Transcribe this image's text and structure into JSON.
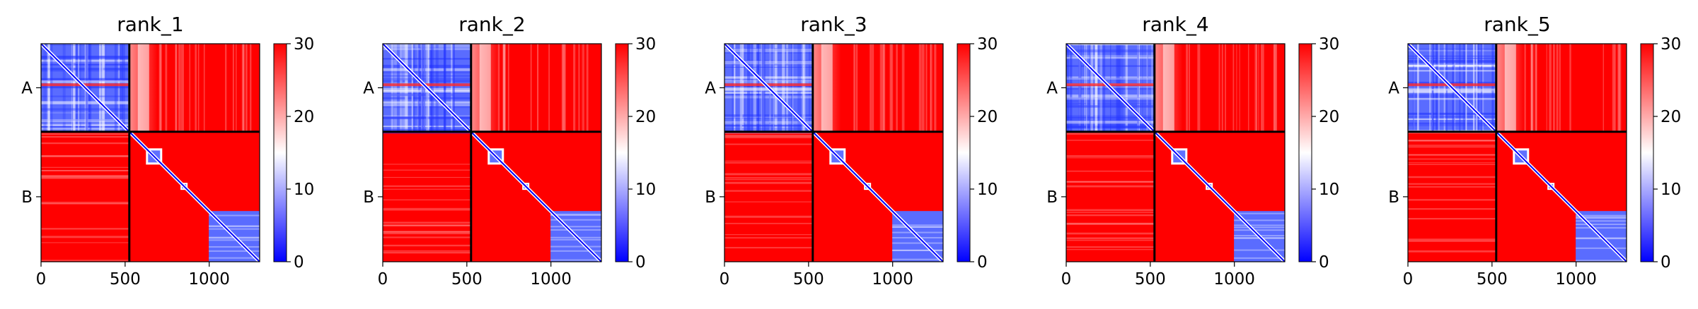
{
  "chart_data": [
    {
      "type": "heatmap",
      "title": "rank_1",
      "x_ticks": [
        "0",
        "500",
        "1000"
      ],
      "x_tick_values": [
        0,
        500,
        1000
      ],
      "y_tick_labels": [
        "A",
        "B"
      ],
      "chain_lengths": [
        525,
        775
      ],
      "xlim": [
        0,
        1300
      ],
      "colorbar": {
        "min": 0,
        "max": 30,
        "ticks": [
          "0",
          "10",
          "20",
          "30"
        ],
        "tick_values": [
          0,
          10,
          20,
          30
        ],
        "colormap": "bwr"
      }
    },
    {
      "type": "heatmap",
      "title": "rank_2",
      "x_ticks": [
        "0",
        "500",
        "1000"
      ],
      "x_tick_values": [
        0,
        500,
        1000
      ],
      "y_tick_labels": [
        "A",
        "B"
      ],
      "chain_lengths": [
        525,
        775
      ],
      "xlim": [
        0,
        1300
      ],
      "colorbar": {
        "min": 0,
        "max": 30,
        "ticks": [
          "0",
          "10",
          "20",
          "30"
        ],
        "tick_values": [
          0,
          10,
          20,
          30
        ],
        "colormap": "bwr"
      }
    },
    {
      "type": "heatmap",
      "title": "rank_3",
      "x_ticks": [
        "0",
        "500",
        "1000"
      ],
      "x_tick_values": [
        0,
        500,
        1000
      ],
      "y_tick_labels": [
        "A",
        "B"
      ],
      "chain_lengths": [
        525,
        775
      ],
      "xlim": [
        0,
        1300
      ],
      "colorbar": {
        "min": 0,
        "max": 30,
        "ticks": [
          "0",
          "10",
          "20",
          "30"
        ],
        "tick_values": [
          0,
          10,
          20,
          30
        ],
        "colormap": "bwr"
      }
    },
    {
      "type": "heatmap",
      "title": "rank_4",
      "x_ticks": [
        "0",
        "500",
        "1000"
      ],
      "x_tick_values": [
        0,
        500,
        1000
      ],
      "y_tick_labels": [
        "A",
        "B"
      ],
      "chain_lengths": [
        525,
        775
      ],
      "xlim": [
        0,
        1300
      ],
      "colorbar": {
        "min": 0,
        "max": 30,
        "ticks": [
          "0",
          "10",
          "20",
          "30"
        ],
        "tick_values": [
          0,
          10,
          20,
          30
        ],
        "colormap": "bwr"
      }
    },
    {
      "type": "heatmap",
      "title": "rank_5",
      "x_ticks": [
        "0",
        "500",
        "1000"
      ],
      "x_tick_values": [
        0,
        500,
        1000
      ],
      "y_tick_labels": [
        "A",
        "B"
      ],
      "chain_lengths": [
        525,
        775
      ],
      "xlim": [
        0,
        1300
      ],
      "colorbar": {
        "min": 0,
        "max": 30,
        "ticks": [
          "0",
          "10",
          "20",
          "30"
        ],
        "tick_values": [
          0,
          10,
          20,
          30
        ],
        "colormap": "bwr"
      }
    }
  ],
  "colors": {
    "low": "#0000ff",
    "mid": "#ffffff",
    "high": "#ff0000",
    "divider": "#000000"
  }
}
